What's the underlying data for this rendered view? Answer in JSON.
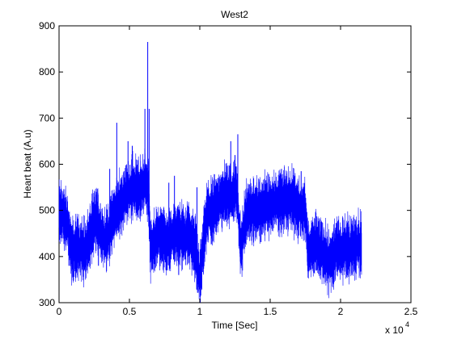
{
  "chart_data": {
    "type": "line",
    "title": "West2",
    "xlabel": "Time [Sec]",
    "ylabel": "Heart beat (A.u)",
    "x_multiplier_label": "x 10",
    "x_multiplier_exponent": "4",
    "xlim": [
      0,
      25000
    ],
    "ylim": [
      300,
      900
    ],
    "x_ticks": [
      0,
      5000,
      10000,
      15000,
      20000,
      25000
    ],
    "x_tick_labels": [
      "0",
      "0.5",
      "1",
      "1.5",
      "2",
      "2.5"
    ],
    "y_ticks": [
      300,
      400,
      500,
      600,
      700,
      800,
      900
    ],
    "y_tick_labels": [
      "300",
      "400",
      "500",
      "600",
      "700",
      "800",
      "900"
    ],
    "grid": false,
    "line_color": "#0000ff",
    "series": [
      {
        "x": [
          0,
          300,
          600,
          900,
          1200,
          1500,
          1800,
          2100,
          2400,
          2700,
          3000,
          3300,
          3600,
          3900,
          4200,
          4500,
          4800,
          5100,
          5400,
          5700,
          6000,
          6200,
          6350,
          6500,
          6800,
          7100,
          7400,
          7700,
          8000,
          8300,
          8600,
          8900,
          9200,
          9500,
          9800,
          10000,
          10200,
          10500,
          10800,
          11100,
          11400,
          11700,
          12000,
          12300,
          12600,
          12900,
          13100,
          13300,
          13600,
          13900,
          14200,
          14500,
          14800,
          15100,
          15400,
          15700,
          16000,
          16300,
          16600,
          16900,
          17200,
          17500,
          17700,
          18000,
          18300,
          18600,
          18900,
          19200,
          19500,
          19700,
          20000,
          20300,
          20600,
          20900,
          21200,
          21500
        ],
        "y": [
          500,
          490,
          470,
          410,
          420,
          420,
          410,
          430,
          470,
          480,
          450,
          430,
          460,
          490,
          510,
          520,
          540,
          545,
          550,
          545,
          550,
          560,
          540,
          420,
          430,
          450,
          440,
          430,
          440,
          450,
          450,
          440,
          450,
          430,
          400,
          350,
          420,
          490,
          500,
          510,
          520,
          530,
          535,
          530,
          545,
          420,
          450,
          490,
          500,
          495,
          500,
          510,
          505,
          510,
          520,
          515,
          520,
          520,
          520,
          510,
          505,
          500,
          410,
          420,
          425,
          410,
          400,
          390,
          395,
          420,
          410,
          420,
          415,
          420,
          425,
          425
        ]
      }
    ],
    "spikes": [
      {
        "x": 700,
        "y": 380
      },
      {
        "x": 2800,
        "y": 380
      },
      {
        "x": 3600,
        "y": 590
      },
      {
        "x": 4100,
        "y": 690
      },
      {
        "x": 4900,
        "y": 650
      },
      {
        "x": 5200,
        "y": 640
      },
      {
        "x": 6100,
        "y": 720
      },
      {
        "x": 6300,
        "y": 865
      },
      {
        "x": 6400,
        "y": 720
      },
      {
        "x": 7800,
        "y": 560
      },
      {
        "x": 8200,
        "y": 575
      },
      {
        "x": 8500,
        "y": 360
      },
      {
        "x": 9800,
        "y": 550
      },
      {
        "x": 10050,
        "y": 320
      },
      {
        "x": 12200,
        "y": 650
      },
      {
        "x": 12500,
        "y": 620
      },
      {
        "x": 12700,
        "y": 665
      },
      {
        "x": 12950,
        "y": 380
      },
      {
        "x": 15800,
        "y": 590
      },
      {
        "x": 17200,
        "y": 585
      },
      {
        "x": 18000,
        "y": 440
      },
      {
        "x": 19500,
        "y": 340
      },
      {
        "x": 20400,
        "y": 385
      }
    ]
  }
}
